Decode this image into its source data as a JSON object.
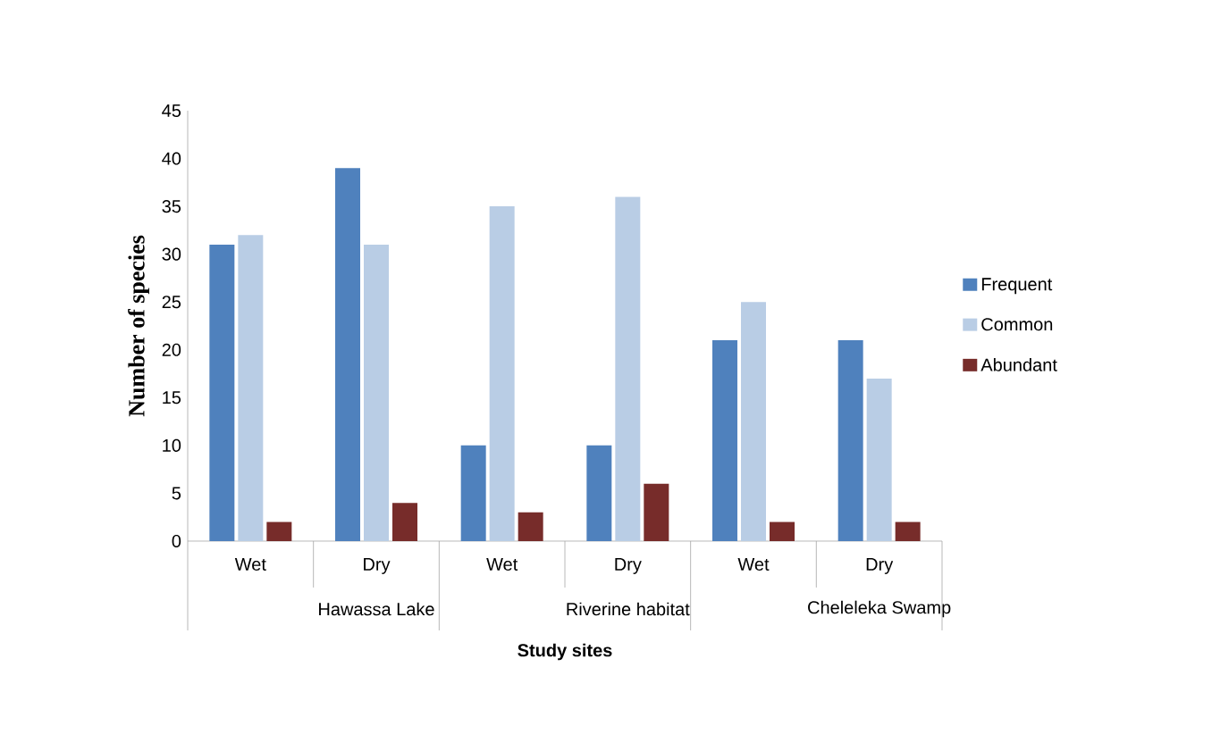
{
  "chart_data": {
    "type": "bar",
    "xlabel": "Study sites",
    "ylabel": "Number of species",
    "categories": [
      "Wet",
      "Dry",
      "Wet",
      "Dry",
      "Wet",
      "Dry"
    ],
    "annotations": [
      "Hawassa Lake",
      "Riverine habitat",
      "Cheleleka Swamp"
    ],
    "series": [
      {
        "name": "Frequent",
        "color": "#4f81bd",
        "values": [
          31,
          39,
          10,
          10,
          21,
          21
        ]
      },
      {
        "name": "Common",
        "color": "#b9cde5",
        "values": [
          32,
          31,
          35,
          36,
          25,
          17
        ]
      },
      {
        "name": "Abundant",
        "color": "#772c2a",
        "values": [
          2,
          4,
          3,
          6,
          2,
          2
        ]
      }
    ],
    "ylim": [
      0,
      45
    ],
    "yticks": [
      0,
      5,
      10,
      15,
      20,
      25,
      30,
      35,
      40,
      45
    ],
    "grid": false,
    "legend": "right"
  }
}
